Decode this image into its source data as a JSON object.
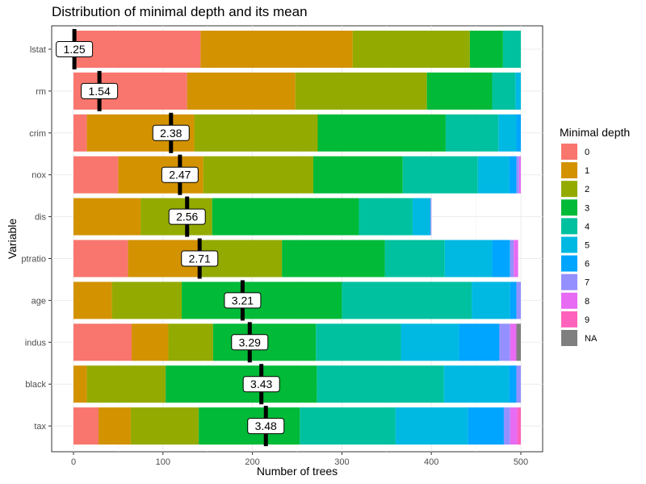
{
  "chart_data": {
    "type": "bar",
    "orientation": "horizontal",
    "stacked": true,
    "title": "Distribution of minimal depth and its mean",
    "xlabel": "Number of trees",
    "ylabel": "Variable",
    "xlim": [
      0,
      500
    ],
    "xticks": [
      0,
      100,
      200,
      300,
      400,
      500
    ],
    "grid": true,
    "legend_position": "right",
    "legend_title": "Minimal depth",
    "categories": [
      "lstat",
      "rm",
      "crim",
      "nox",
      "dis",
      "ptratio",
      "age",
      "indus",
      "black",
      "tax"
    ],
    "series": [
      {
        "name": "0",
        "color": "#F8766D",
        "values": [
          142,
          127,
          15,
          50,
          0,
          61,
          0,
          65,
          0,
          28
        ]
      },
      {
        "name": "1",
        "color": "#D39200",
        "values": [
          170,
          121,
          120,
          95,
          75,
          80,
          43,
          41,
          15,
          36
        ]
      },
      {
        "name": "2",
        "color": "#93AA00",
        "values": [
          131,
          147,
          138,
          123,
          80,
          92,
          78,
          50,
          88,
          76
        ]
      },
      {
        "name": "3",
        "color": "#00BA38",
        "values": [
          37,
          73,
          143,
          100,
          164,
          115,
          179,
          115,
          169,
          113
        ]
      },
      {
        "name": "4",
        "color": "#00C19F",
        "values": [
          20,
          26,
          59,
          84,
          60,
          67,
          145,
          95,
          142,
          107
        ]
      },
      {
        "name": "5",
        "color": "#00B9E3",
        "values": [
          0,
          6,
          20,
          35,
          20,
          53,
          43,
          65,
          73,
          81
        ]
      },
      {
        "name": "6",
        "color": "#00A5FF",
        "values": [
          0,
          0,
          5,
          8,
          0,
          20,
          7,
          45,
          8,
          40
        ]
      },
      {
        "name": "7",
        "color": "#9590FF",
        "values": [
          0,
          0,
          0,
          3,
          1,
          4,
          5,
          12,
          5,
          7
        ]
      },
      {
        "name": "8",
        "color": "#E76BF3",
        "values": [
          0,
          0,
          0,
          2,
          0,
          5,
          0,
          7,
          0,
          8
        ]
      },
      {
        "name": "9",
        "color": "#FF62BC",
        "values": [
          0,
          0,
          0,
          0,
          0,
          0,
          0,
          0,
          0,
          4
        ]
      },
      {
        "name": "NA",
        "color": "#7F7F7F",
        "values": [
          0,
          0,
          0,
          0,
          0,
          0,
          0,
          5,
          0,
          0
        ]
      }
    ],
    "mean_minimal_depth": [
      1.25,
      1.54,
      2.38,
      2.47,
      2.56,
      2.71,
      3.21,
      3.29,
      3.43,
      3.48
    ],
    "mean_labels": [
      "1.25",
      "1.54",
      "2.38",
      "2.47",
      "2.56",
      "2.71",
      "3.21",
      "3.29",
      "3.43",
      "3.48"
    ],
    "mean_marker_position": [
      1,
      29,
      109,
      119,
      127,
      141,
      189,
      197,
      210,
      215
    ]
  }
}
